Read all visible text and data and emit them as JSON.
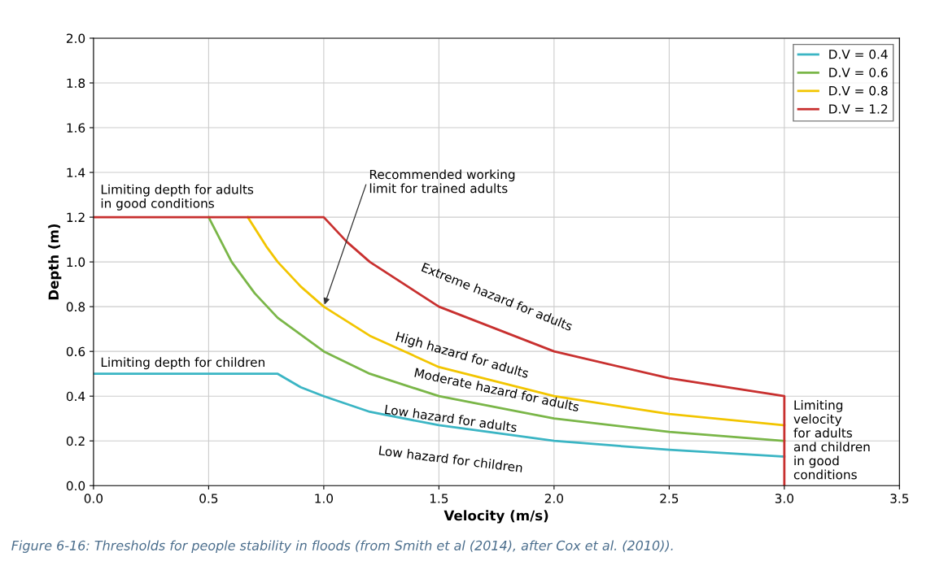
{
  "chart_data": {
    "type": "line",
    "xlabel": "Velocity (m/s)",
    "ylabel": "Depth (m)",
    "xlim": [
      0,
      3.5
    ],
    "xticks": [
      {
        "value": 0,
        "label": "0.0"
      },
      {
        "value": 0.5,
        "label": "0.5"
      },
      {
        "value": 1,
        "label": "1.0"
      },
      {
        "value": 1.5,
        "label": "1.5"
      },
      {
        "value": 2,
        "label": "2.0"
      },
      {
        "value": 2.5,
        "label": "2.5"
      },
      {
        "value": 3,
        "label": "3.0"
      },
      {
        "value": 3.5,
        "label": "3.5"
      }
    ],
    "ylim": [
      0,
      2
    ],
    "yticks": [
      {
        "value": 0,
        "label": "0.0"
      },
      {
        "value": 0.2,
        "label": "0.2"
      },
      {
        "value": 0.4,
        "label": "0.4"
      },
      {
        "value": 0.6,
        "label": "0.6"
      },
      {
        "value": 0.8,
        "label": "0.8"
      },
      {
        "value": 1,
        "label": "1.0"
      },
      {
        "value": 1.2,
        "label": "1.2"
      },
      {
        "value": 1.4,
        "label": "1.4"
      },
      {
        "value": 1.6,
        "label": "1.6"
      },
      {
        "value": 1.8,
        "label": "1.8"
      },
      {
        "value": 2,
        "label": "2.0"
      }
    ],
    "grid": true,
    "legend": "top right",
    "marker": "none",
    "line_style": "solid",
    "series": [
      {
        "name": "D.V = 0.4",
        "color": "#3bb5c4",
        "x": [
          0,
          0.8,
          0.9,
          1.0,
          1.2,
          1.5,
          2.0,
          2.5,
          3.0
        ],
        "values": [
          0.5,
          0.5,
          0.44,
          0.4,
          0.33,
          0.27,
          0.2,
          0.16,
          0.13
        ]
      },
      {
        "name": "D.V = 0.6",
        "color": "#7ab648",
        "x": [
          0.5,
          0.6,
          0.7,
          0.8,
          1.0,
          1.2,
          1.5,
          2.0,
          2.5,
          3.0
        ],
        "values": [
          1.2,
          1.0,
          0.86,
          0.75,
          0.6,
          0.5,
          0.4,
          0.3,
          0.24,
          0.2
        ]
      },
      {
        "name": "D.V = 0.8",
        "color": "#f2c500",
        "x": [
          0.67,
          0.75,
          0.8,
          0.9,
          1.0,
          1.2,
          1.5,
          2.0,
          2.5,
          3.0
        ],
        "values": [
          1.2,
          1.07,
          1.0,
          0.89,
          0.8,
          0.67,
          0.53,
          0.4,
          0.32,
          0.27
        ]
      },
      {
        "name": "D.V = 1.2",
        "color": "#c8302f",
        "x": [
          0,
          1.0,
          1.1,
          1.2,
          1.5,
          2.0,
          2.5,
          3.0,
          3.0
        ],
        "values": [
          1.2,
          1.2,
          1.09,
          1.0,
          0.8,
          0.6,
          0.48,
          0.4,
          0.0
        ]
      }
    ],
    "annotations": [
      {
        "text": "Limiting depth for adults\nin good conditions",
        "x": 0.03,
        "y": 1.2
      },
      {
        "text": "Recommended working\nlimit for trained adults",
        "x": 1.0,
        "y": 0.8
      },
      "Extreme hazard for adults",
      "High hazard for adults",
      "Moderate hazard for adults",
      "Low hazard for adults",
      "Low hazard for children",
      {
        "text": "Limiting depth for children",
        "x": 0.03,
        "y": 0.5
      },
      {
        "text": "Limiting\nvelocity\nfor adults\nand children\nin good\nconditions",
        "x": 3.0,
        "y": 0.2
      },
      "Figure 6-16: Thresholds for people stability in floods (from Smith et al (2014), after Cox et al. (2010))."
    ]
  }
}
